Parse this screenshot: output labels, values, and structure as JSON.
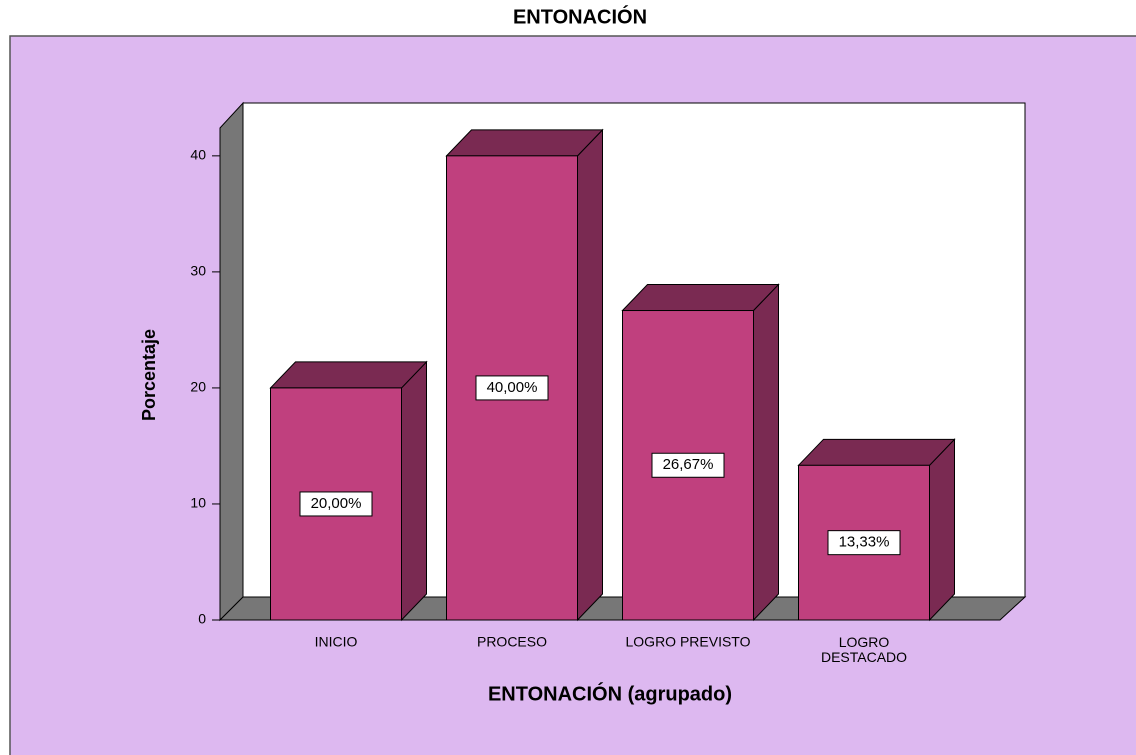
{
  "chart_data": {
    "type": "bar3d",
    "title": "ENTONACIÓN",
    "x_label": "ENTONACIÓN (agrupado)",
    "y_label": "Porcentaje",
    "categories": [
      "INICIO",
      "PROCESO",
      "LOGRO PREVISTO",
      "LOGRO DESTACADO"
    ],
    "values": [
      20,
      40,
      26.67,
      13.33
    ],
    "value_labels": [
      "20,00%",
      "40,00%",
      "26,67%",
      "13,33%"
    ],
    "color": "#c0407e",
    "side_color": "#7a2a52",
    "ylim": [
      0,
      42.4
    ],
    "yticks": [
      0,
      10,
      20,
      30,
      40
    ]
  }
}
